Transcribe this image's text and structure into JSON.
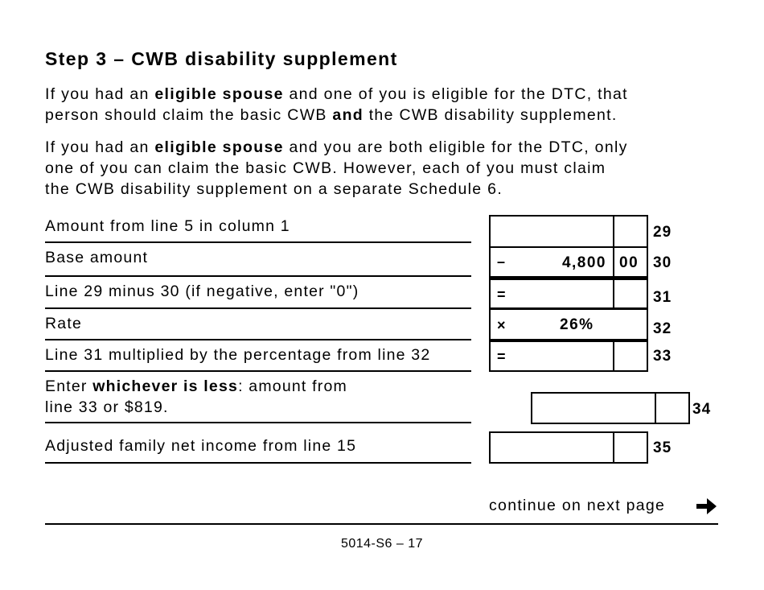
{
  "title": "Step 3 – CWB disability supplement",
  "para1": {
    "a": "If you had an ",
    "b": "eligible spouse",
    "c": " and one of you is eligible for the DTC, that",
    "d": "person should claim the basic CWB ",
    "e": "and",
    "f": " the CWB disability supplement."
  },
  "para2": {
    "a": "If you had an ",
    "b": "eligible spouse",
    "c": " and you are both eligible for the DTC, only",
    "d": "one of you can claim the basic CWB. However, each of you must claim",
    "e": "the CWB disability supplement on a separate Schedule 6."
  },
  "rows": [
    {
      "label": "Amount from line 5 in column 1",
      "line": "29",
      "op": "",
      "dollars": "",
      "cents": ""
    },
    {
      "label": "Base amount",
      "line": "30",
      "op": "–",
      "dollars": "4,800",
      "cents": "00"
    },
    {
      "label": "Line 29 minus 30 (if negative, enter \"0\")",
      "line": "31",
      "op": "=",
      "dollars": "",
      "cents": ""
    },
    {
      "label": "Rate",
      "line": "32",
      "op": "×",
      "value": "26%"
    },
    {
      "label": "Line 31 multiplied by the percentage from line 32",
      "line": "33",
      "op": "=",
      "dollars": "",
      "cents": ""
    },
    {
      "label_a": "Enter ",
      "label_b": "whichever is less",
      "label_c": ": amount from",
      "label_d": "line 33 or $819.",
      "line": "34"
    },
    {
      "label": "Adjusted family net income from line 15",
      "line": "35"
    }
  ],
  "footer": {
    "continue": "continue on next page",
    "arrow_icon": "arrow-right-icon",
    "page_number": "5014-S6 – 17"
  }
}
